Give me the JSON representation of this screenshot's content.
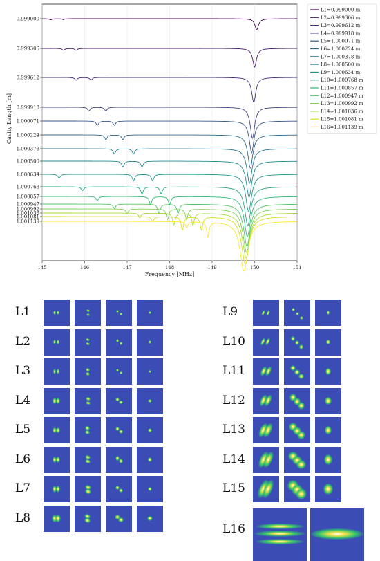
{
  "colors": {
    "plot_background": "#ffffff",
    "mode_background": "#3b4cb4",
    "viridis": [
      "#440154",
      "#481a6c",
      "#472f7d",
      "#414487",
      "#39568c",
      "#31688e",
      "#2a788e",
      "#23888e",
      "#1f988b",
      "#22a884",
      "#35b779",
      "#54c568",
      "#7ad151",
      "#a5db36",
      "#d2e21b",
      "#fde725"
    ]
  },
  "chart_data": {
    "type": "line",
    "xlabel": "Frequency [MHz]",
    "ylabel": "Cavity Length [m]",
    "xlim": [
      145,
      151
    ],
    "x_ticks": [
      "145",
      "146",
      "147",
      "148",
      "149",
      "150",
      "151"
    ],
    "grid": "vertical",
    "legend_position": "top-right outside",
    "series": [
      {
        "name": "L1=0.999000 m",
        "ytick": "0.999000",
        "dips": [
          [
            145.2,
            0.1
          ],
          [
            145.5,
            0.08
          ],
          [
            150.05,
            1.0
          ]
        ]
      },
      {
        "name": "L2=0.999306 m",
        "ytick": "0.999306",
        "dips": [
          [
            145.5,
            0.1
          ],
          [
            145.8,
            0.1
          ],
          [
            150.0,
            1.0
          ]
        ]
      },
      {
        "name": "L3=0.999612 m",
        "ytick": "0.999612",
        "dips": [
          [
            145.8,
            0.11
          ],
          [
            146.15,
            0.1
          ],
          [
            149.98,
            1.0
          ]
        ]
      },
      {
        "name": "L4=0.999918 m",
        "ytick": "0.999918",
        "dips": [
          [
            146.1,
            0.12
          ],
          [
            146.5,
            0.12
          ],
          [
            149.95,
            1.0
          ]
        ]
      },
      {
        "name": "L5=1.000071 m",
        "ytick": "1.000071",
        "dips": [
          [
            146.3,
            0.13
          ],
          [
            146.7,
            0.13
          ],
          [
            149.93,
            1.0
          ]
        ]
      },
      {
        "name": "L6=1.000224 m",
        "ytick": "1.000224",
        "dips": [
          [
            146.5,
            0.14
          ],
          [
            146.9,
            0.14
          ],
          [
            149.9,
            1.0
          ]
        ]
      },
      {
        "name": "L7=1.000378 m",
        "ytick": "1.000378",
        "dips": [
          [
            146.7,
            0.15
          ],
          [
            147.15,
            0.15
          ],
          [
            149.88,
            1.0
          ]
        ]
      },
      {
        "name": "L8=1.000500 m",
        "ytick": "1.000500",
        "dips": [
          [
            146.9,
            0.16
          ],
          [
            147.35,
            0.16
          ],
          [
            149.87,
            1.0
          ]
        ]
      },
      {
        "name": "L9=1.000634 m",
        "ytick": "1.000634",
        "dips": [
          [
            145.4,
            0.1
          ],
          [
            147.15,
            0.17
          ],
          [
            147.6,
            0.17
          ],
          [
            149.86,
            1.0
          ]
        ]
      },
      {
        "name": "L10=1.000768 m",
        "ytick": "1.000768",
        "dips": [
          [
            145.95,
            0.1
          ],
          [
            147.35,
            0.18
          ],
          [
            147.8,
            0.18
          ],
          [
            149.84,
            1.0
          ]
        ]
      },
      {
        "name": "L11=1.000857 m",
        "ytick": "1.000857",
        "dips": [
          [
            146.3,
            0.1
          ],
          [
            147.55,
            0.2
          ],
          [
            148.0,
            0.2
          ],
          [
            149.83,
            1.0
          ]
        ]
      },
      {
        "name": "L12=1.000947 m",
        "ytick": "1.000947",
        "dips": [
          [
            146.7,
            0.1
          ],
          [
            147.75,
            0.22
          ],
          [
            148.2,
            0.22
          ],
          [
            149.82,
            1.0
          ]
        ]
      },
      {
        "name": "L13=1.000992 m",
        "ytick": "1.000992",
        "dips": [
          [
            147.0,
            0.1
          ],
          [
            147.95,
            0.24
          ],
          [
            148.4,
            0.24
          ],
          [
            149.81,
            1.0
          ]
        ]
      },
      {
        "name": "L14=1.001036 m",
        "ytick": "1.001036",
        "dips": [
          [
            147.3,
            0.1
          ],
          [
            148.1,
            0.26
          ],
          [
            148.55,
            0.26
          ],
          [
            149.8,
            1.0
          ]
        ]
      },
      {
        "name": "L15=1.001081 m",
        "ytick": "1.001081",
        "dips": [
          [
            147.6,
            0.1
          ],
          [
            148.3,
            0.28
          ],
          [
            148.75,
            0.28
          ],
          [
            149.78,
            1.0
          ]
        ]
      },
      {
        "name": "L16=1.001139 m",
        "ytick": "1.001139",
        "dips": [
          [
            148.4,
            0.12
          ],
          [
            148.9,
            0.3
          ],
          [
            149.75,
            1.0
          ]
        ]
      }
    ]
  },
  "modes": {
    "left_labels": [
      "L1",
      "L2",
      "L3",
      "L4",
      "L5",
      "L6",
      "L7",
      "L8"
    ],
    "right_labels": [
      "L9",
      "L10",
      "L11",
      "L12",
      "L13",
      "L14",
      "L15",
      "L16"
    ]
  }
}
